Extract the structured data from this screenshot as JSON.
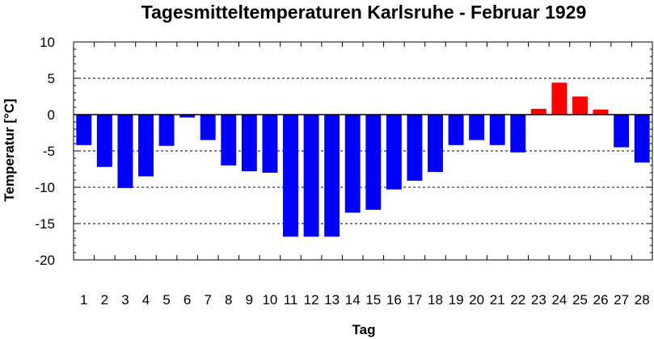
{
  "chart_data": {
    "type": "bar",
    "title": "Tagesmitteltemperaturen Karlsruhe - Februar 1929",
    "xlabel": "Tag",
    "ylabel": "Temperatur [°C]",
    "ylim": [
      -20,
      10
    ],
    "yticks": [
      10,
      5,
      0,
      -5,
      -10,
      -15,
      -20
    ],
    "grid": true,
    "categories": [
      "1",
      "2",
      "3",
      "4",
      "5",
      "6",
      "7",
      "8",
      "9",
      "10",
      "11",
      "12",
      "13",
      "14",
      "15",
      "16",
      "17",
      "18",
      "19",
      "20",
      "21",
      "22",
      "23",
      "24",
      "25",
      "26",
      "27",
      "28"
    ],
    "values": [
      -4.2,
      -7.2,
      -10.1,
      -8.5,
      -4.3,
      -0.4,
      -3.5,
      -7.0,
      -7.8,
      -8.0,
      -16.8,
      -16.8,
      -16.8,
      -13.5,
      -13.1,
      -10.3,
      -9.1,
      -7.9,
      -4.2,
      -3.5,
      -4.2,
      -5.2,
      0.8,
      4.4,
      2.5,
      0.7,
      -4.5,
      -6.6
    ],
    "colors": {
      "negative": "#0000ff",
      "positive": "#ff0000",
      "grid": "#000000",
      "axis": "#000000"
    }
  }
}
